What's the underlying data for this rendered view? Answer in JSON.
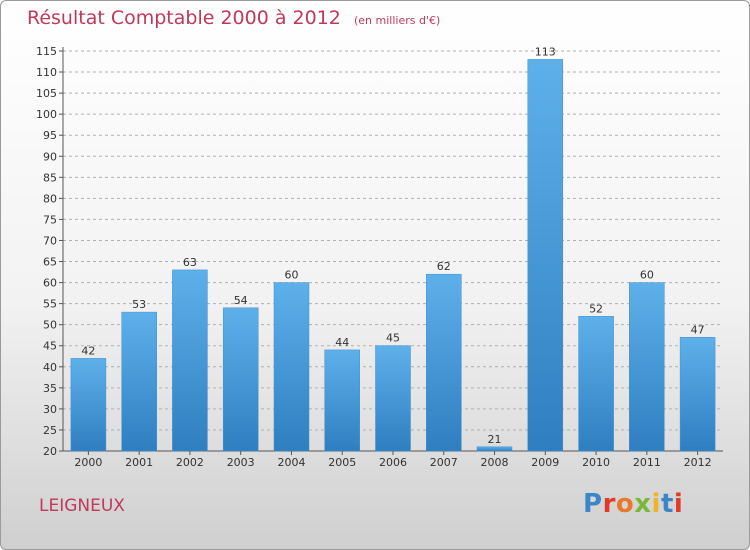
{
  "header": {
    "title": "Résultat Comptable 2000 à 2012",
    "subtitle": "(en milliers d'€)"
  },
  "footer": {
    "commune": "LEIGNEUX",
    "logo_text": "Proxiti"
  },
  "colors": {
    "title": "#c0395a",
    "bar_top": "#5eb0ea",
    "bar_bottom": "#2f7fc0",
    "grid": "#b0b0b0"
  },
  "chart_data": {
    "type": "bar",
    "title": "Résultat Comptable 2000 à 2012",
    "subtitle": "(en milliers d'€)",
    "categories": [
      "2000",
      "2001",
      "2002",
      "2003",
      "2004",
      "2005",
      "2006",
      "2007",
      "2008",
      "2009",
      "2010",
      "2011",
      "2012"
    ],
    "values": [
      42,
      53,
      63,
      54,
      60,
      44,
      45,
      62,
      21,
      113,
      52,
      60,
      47
    ],
    "ylim": [
      20,
      115
    ],
    "ytick_step": 5,
    "grid": "horizontal dashed",
    "legend": "none",
    "data_labels": true
  }
}
